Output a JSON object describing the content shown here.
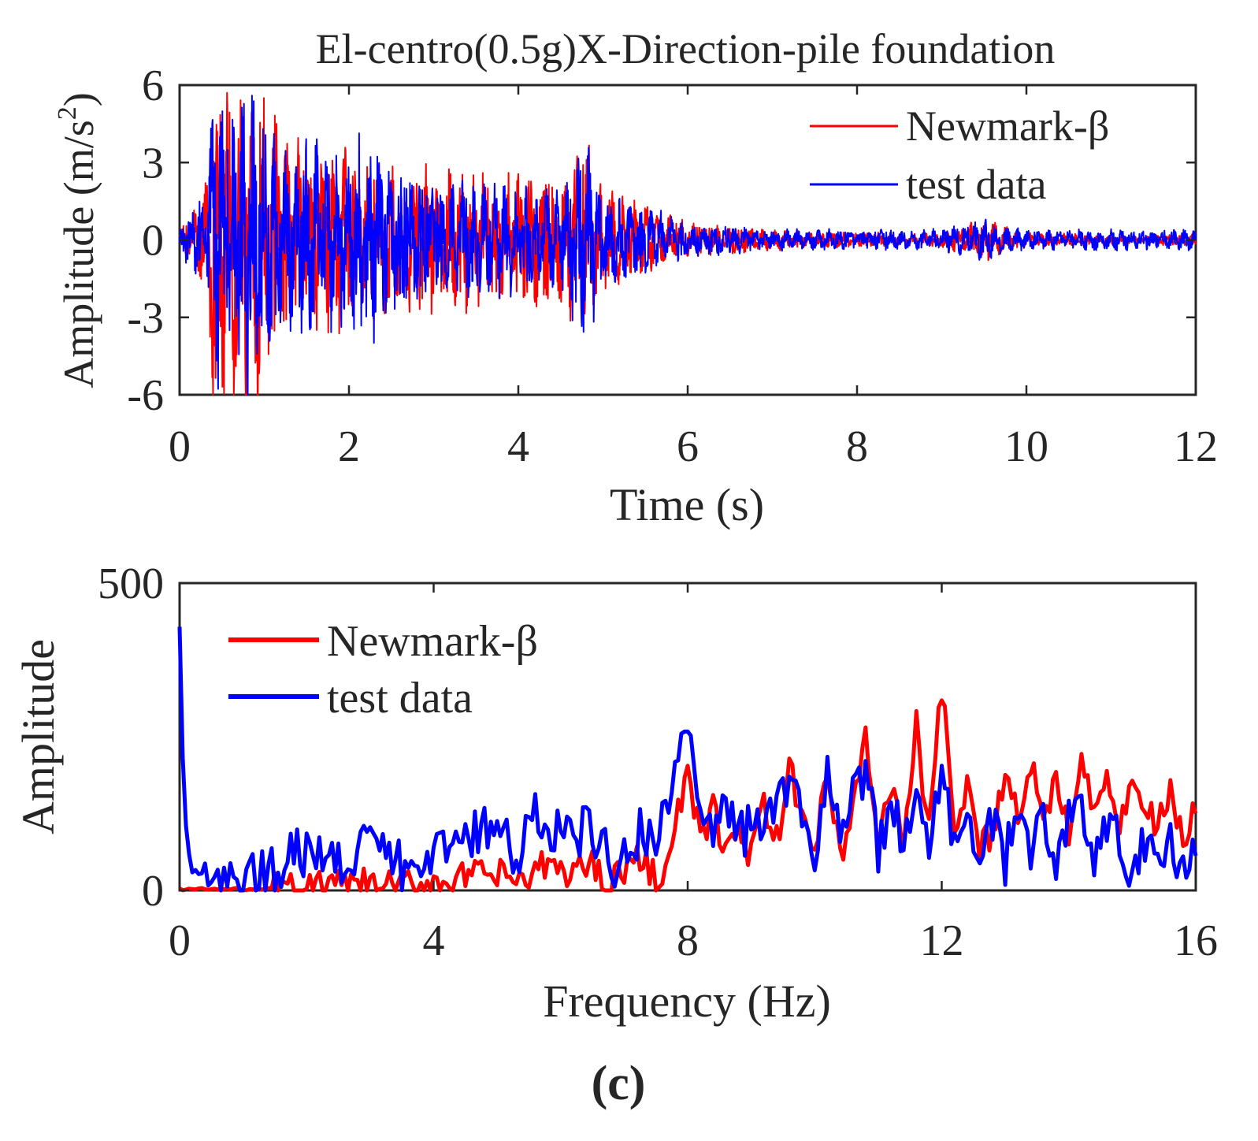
{
  "colors": {
    "newmark": "#ff0000",
    "test": "#0000ff",
    "axis": "#262626"
  },
  "panel_label": "(c)",
  "chart_data": [
    {
      "type": "line",
      "title": "El-centro(0.5g)X-Direction-pile foundation",
      "xlabel": "Time (s)",
      "ylabel_main": "Amplitude (m/s",
      "ylabel_sup": "2",
      "ylabel_end": ")",
      "xlim": [
        0,
        12
      ],
      "ylim": [
        -6,
        6
      ],
      "xticks": [
        0,
        2,
        4,
        6,
        8,
        10,
        12
      ],
      "yticks": [
        -6,
        -3,
        0,
        3,
        6
      ],
      "ytick_labels": [
        "-6",
        "-3",
        "0",
        "3",
        "6"
      ],
      "legend_position": "top-right",
      "legend": [
        "Newmark-β",
        "test data"
      ],
      "series": [
        {
          "name": "Newmark-β",
          "x": [
            0.0,
            0.3,
            0.4,
            0.45,
            0.5,
            0.6,
            0.7,
            0.8,
            0.9,
            1.0,
            1.2,
            1.5,
            2.0,
            2.5,
            3.0,
            3.5,
            4.0,
            4.5,
            4.8,
            5.0,
            5.5,
            6.0,
            6.5,
            7.0,
            8.0,
            9.0,
            9.5,
            10.0,
            11.0,
            12.0
          ],
          "envelope": [
            0.2,
            1.5,
            5.0,
            5.7,
            5.5,
            5.0,
            4.5,
            4.8,
            5.1,
            4.0,
            3.2,
            2.6,
            2.5,
            2.2,
            2.0,
            2.0,
            2.0,
            2.2,
            3.0,
            1.6,
            1.0,
            0.5,
            0.4,
            0.3,
            0.2,
            0.2,
            0.6,
            0.2,
            0.15,
            0.15
          ]
        },
        {
          "name": "test data",
          "x": [
            0.0,
            0.3,
            0.4,
            0.45,
            0.5,
            0.6,
            0.7,
            0.8,
            0.9,
            1.0,
            1.2,
            1.5,
            2.0,
            2.2,
            2.5,
            3.0,
            3.5,
            4.0,
            4.5,
            4.8,
            5.0,
            5.5,
            6.0,
            6.5,
            7.0,
            8.0,
            9.0,
            9.5,
            10.0,
            11.0,
            12.0
          ],
          "envelope": [
            0.25,
            1.8,
            5.4,
            4.5,
            3.5,
            3.5,
            3.8,
            5.0,
            5.0,
            3.5,
            2.6,
            2.8,
            2.6,
            3.6,
            2.2,
            1.6,
            1.6,
            1.6,
            1.5,
            3.0,
            1.3,
            1.0,
            0.5,
            0.4,
            0.3,
            0.3,
            0.3,
            0.6,
            0.3,
            0.3,
            0.3
          ]
        }
      ]
    },
    {
      "type": "line",
      "xlabel": "Frequency (Hz)",
      "ylabel": "Amplitude",
      "xlim": [
        0,
        16
      ],
      "ylim": [
        0,
        500
      ],
      "xticks": [
        0,
        4,
        8,
        12,
        16
      ],
      "yticks": [
        0,
        500
      ],
      "ytick_labels": [
        "0",
        "500"
      ],
      "legend_position": "top-left",
      "legend": [
        "Newmark-β",
        "test data"
      ],
      "series": [
        {
          "name": "Newmark-β",
          "x": [
            0.0,
            0.4,
            1.0,
            2.0,
            2.5,
            3.0,
            3.5,
            4.0,
            4.5,
            5.0,
            5.5,
            5.8,
            6.0,
            6.3,
            6.5,
            6.7,
            7.0,
            7.3,
            7.5,
            7.7,
            7.9,
            8.0,
            8.2,
            8.4,
            8.6,
            8.8,
            9.0,
            9.2,
            9.4,
            9.6,
            9.8,
            10.0,
            10.2,
            10.4,
            10.6,
            10.8,
            11.0,
            11.2,
            11.4,
            11.6,
            11.8,
            12.0,
            12.2,
            12.4,
            12.6,
            12.8,
            13.0,
            13.2,
            13.4,
            13.6,
            13.8,
            14.0,
            14.2,
            14.4,
            14.6,
            14.8,
            15.0,
            15.2,
            15.4,
            15.6,
            15.8,
            16.0
          ],
          "y": [
            2,
            2,
            2,
            3,
            6,
            8,
            6,
            15,
            20,
            25,
            15,
            45,
            30,
            35,
            45,
            15,
            35,
            50,
            25,
            40,
            150,
            190,
            80,
            130,
            70,
            90,
            60,
            130,
            80,
            190,
            140,
            50,
            200,
            60,
            130,
            260,
            60,
            180,
            80,
            270,
            90,
            330,
            100,
            160,
            60,
            100,
            200,
            110,
            210,
            130,
            180,
            100,
            240,
            130,
            200,
            80,
            200,
            130,
            100,
            170,
            70,
            130
          ],
          "noise": 28
        },
        {
          "name": "test data",
          "x": [
            0.0,
            0.05,
            0.1,
            0.2,
            0.4,
            1.0,
            1.5,
            1.8,
            2.0,
            2.5,
            3.0,
            3.5,
            4.0,
            4.5,
            5.0,
            5.3,
            5.6,
            6.0,
            6.5,
            6.8,
            7.0,
            7.3,
            7.5,
            7.8,
            8.0,
            8.2,
            8.4,
            8.6,
            8.8,
            9.0,
            9.2,
            9.4,
            9.6,
            9.8,
            10.0,
            10.2,
            10.4,
            10.6,
            10.8,
            11.0,
            11.2,
            11.4,
            11.6,
            11.8,
            12.0,
            12.2,
            12.4,
            12.6,
            12.8,
            13.0,
            13.2,
            13.4,
            13.6,
            13.8,
            14.0,
            14.2,
            14.4,
            14.6,
            14.8,
            15.0,
            15.2,
            15.4,
            15.6,
            15.8,
            16.0
          ],
          "y": [
            450,
            200,
            80,
            30,
            20,
            20,
            30,
            70,
            60,
            50,
            70,
            40,
            60,
            90,
            100,
            50,
            120,
            90,
            100,
            40,
            70,
            100,
            60,
            200,
            285,
            140,
            110,
            150,
            90,
            100,
            90,
            160,
            180,
            120,
            60,
            200,
            80,
            150,
            200,
            60,
            140,
            70,
            200,
            60,
            220,
            80,
            140,
            60,
            110,
            50,
            140,
            70,
            120,
            50,
            110,
            130,
            60,
            120,
            80,
            30,
            90,
            60,
            80,
            30,
            60
          ],
          "noise": 42
        }
      ]
    }
  ]
}
